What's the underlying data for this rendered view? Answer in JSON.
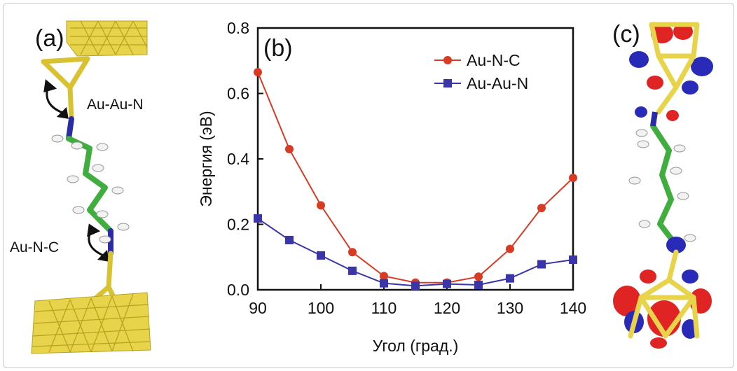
{
  "panel_a": {
    "label": "(a)",
    "bond_label_top": "Au-Au-N",
    "bond_label_bottom": "Au-N-C",
    "colors": {
      "gold": "#e8d44a",
      "carbon": "#3fae3f",
      "nitrogen": "#2b2ba8",
      "hydrogen": "#f2f2f2"
    }
  },
  "panel_c": {
    "label": "(c)",
    "colors": {
      "gold": "#e8d44a",
      "positive_lobe": "#e02424",
      "negative_lobe": "#2a2ab8"
    }
  },
  "chart_data": {
    "type": "line",
    "panel_label": "(b)",
    "xlabel": "Угол (град.)",
    "ylabel": "Энергия (эВ)",
    "xlim": [
      90,
      140
    ],
    "ylim": [
      0.0,
      0.8
    ],
    "xticks": [
      90,
      100,
      110,
      120,
      130,
      140
    ],
    "yticks": [
      0.0,
      0.2,
      0.4,
      0.6,
      0.8
    ],
    "ytick_labels": [
      "0.0",
      "0.2",
      "0.4",
      "0.6",
      "0.8"
    ],
    "legend_position": "top-right",
    "series": [
      {
        "name": "Au-N-C",
        "color": "#d93a24",
        "marker": "circle",
        "x": [
          90,
          95,
          100,
          105,
          110,
          115,
          120,
          125,
          130,
          135,
          140
        ],
        "y": [
          0.665,
          0.43,
          0.258,
          0.115,
          0.042,
          0.022,
          0.022,
          0.04,
          0.125,
          0.25,
          0.342
        ]
      },
      {
        "name": "Au-Au-N",
        "color": "#3a35a8",
        "marker": "square",
        "x": [
          90,
          95,
          100,
          105,
          110,
          115,
          120,
          125,
          130,
          135,
          140
        ],
        "y": [
          0.218,
          0.152,
          0.105,
          0.058,
          0.02,
          0.012,
          0.018,
          0.015,
          0.035,
          0.078,
          0.092
        ]
      }
    ]
  }
}
